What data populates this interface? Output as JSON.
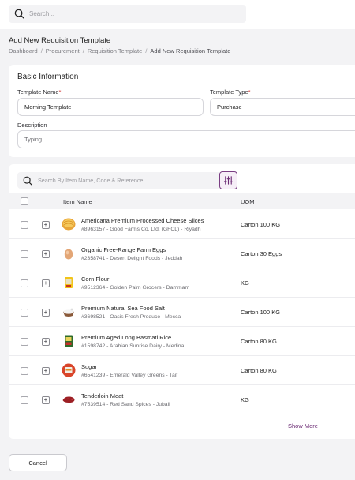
{
  "header": {
    "search_placeholder": "Search..."
  },
  "page": {
    "title": "Add New Requisition Template",
    "breadcrumb": [
      "Dashboard",
      "Procurement",
      "Requisition Template",
      "Add New Requisition Template"
    ],
    "breadcrumb_sep": "/"
  },
  "basic": {
    "heading": "Basic Information",
    "template_name_label": "Template Name",
    "template_name_value": "Morning Template",
    "template_type_label": "Template Type",
    "template_type_value": "Purchase",
    "required_mark": "*",
    "description_label": "Description",
    "description_placeholder": "Typing ..."
  },
  "items": {
    "search_placeholder": "Search By Item Name, Code & Reference...",
    "columns": {
      "item_name": "Item Name",
      "sort_arrow": "↑",
      "uom": "UOM"
    },
    "rows": [
      {
        "name": "Americana Premium Processed Cheese Slices",
        "sub": "#8963157 - Good Farms Co. Ltd. (GFCL) - Riyadh",
        "uom": "Carton 100 KG",
        "icon": "cheese-icon"
      },
      {
        "name": "Organic Free-Range Farm Eggs",
        "sub": "#2358741 - Desert Delight Foods - Jeddah",
        "uom": "Carton 30 Eggs",
        "icon": "egg-icon"
      },
      {
        "name": "Corn Flour",
        "sub": "#9512364 - Golden Palm Grocers - Dammam",
        "uom": "KG",
        "icon": "flour-bag-icon"
      },
      {
        "name": "Premium Natural Sea Food Salt",
        "sub": "#3698521 - Oasis Fresh Produce - Mecca",
        "uom": "Carton 100 KG",
        "icon": "salt-bowl-icon"
      },
      {
        "name": "Premium Aged Long Basmati Rice",
        "sub": "#1598742 - Arabian Sunrise Dairy - Medina",
        "uom": "Carton 80 KG",
        "icon": "rice-bag-icon"
      },
      {
        "name": "Sugar",
        "sub": "#6541239 - Emerald Valley Greens - Taif",
        "uom": "Carton 80 KG",
        "icon": "sugar-pack-icon"
      },
      {
        "name": "Tenderloin Meat",
        "sub": "#7539514 - Red Sand Spices - Jubail",
        "uom": "KG",
        "icon": "meat-icon"
      }
    ],
    "show_more": "Show More"
  },
  "footer": {
    "cancel_label": "Cancel"
  },
  "colors": {
    "accent": "#7a3e83",
    "required": "#d0312d",
    "background": "#f3f3f5"
  }
}
